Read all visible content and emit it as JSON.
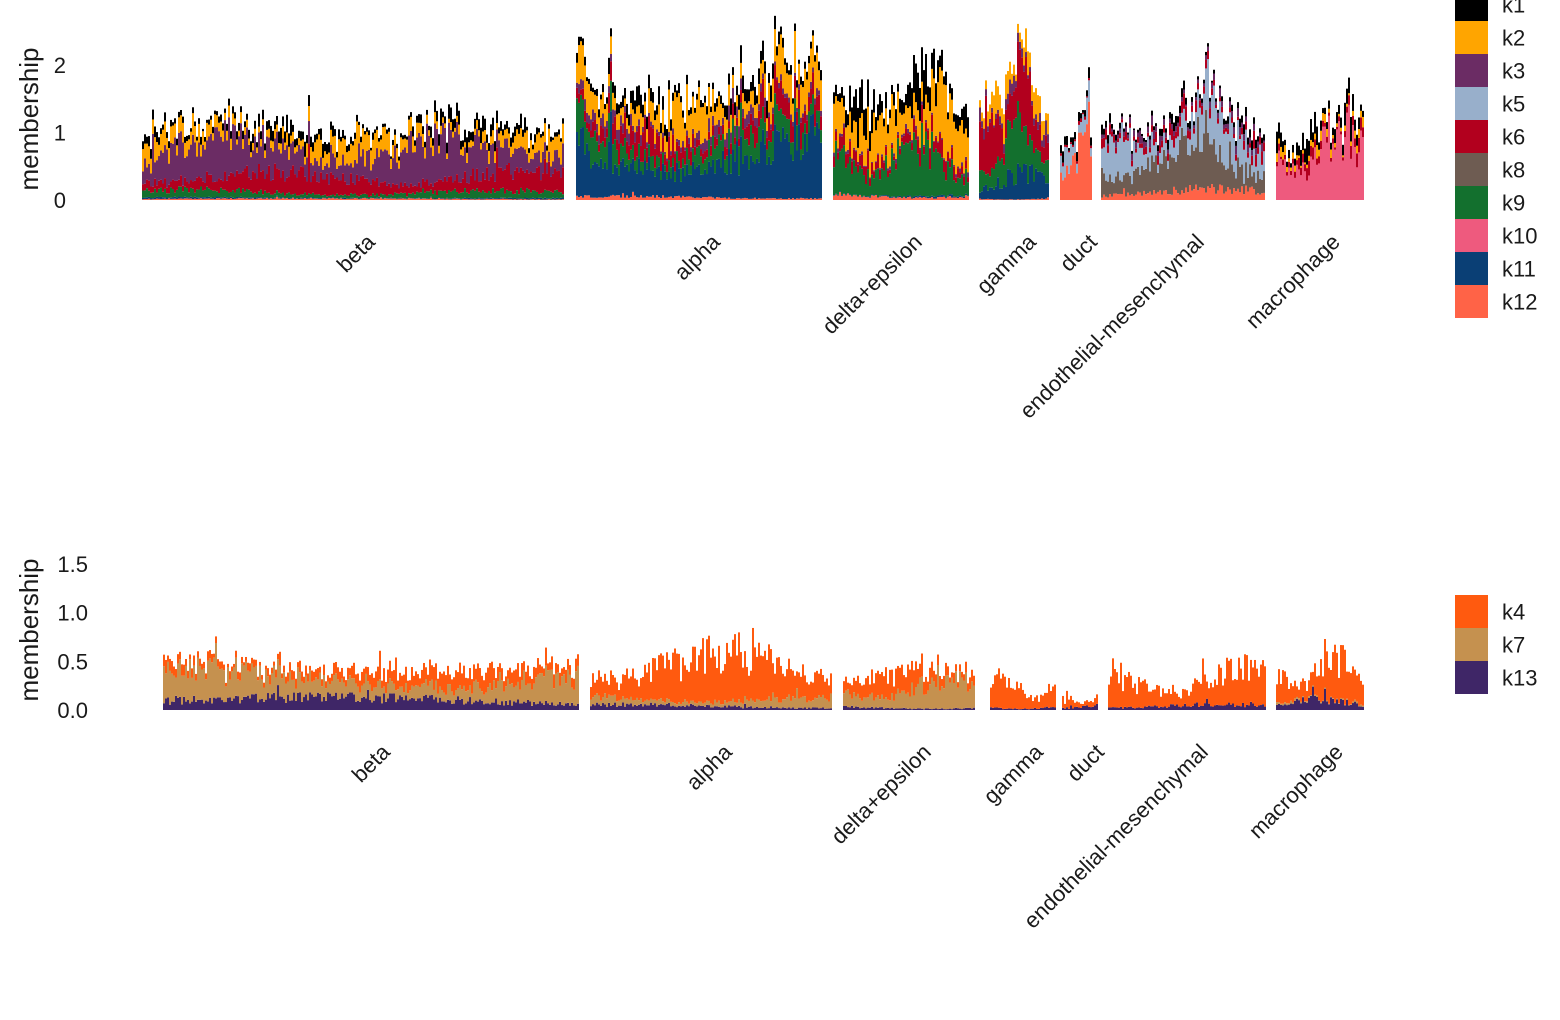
{
  "chart_data": [
    {
      "type": "bar",
      "stacked": true,
      "ylabel": "membership",
      "ylim": [
        0,
        2.7
      ],
      "yticks": [
        0,
        1,
        2
      ],
      "grid": false,
      "legend_position": "right",
      "categories": [
        "beta",
        "alpha",
        "delta+epsilon",
        "gamma",
        "duct",
        "endothelial-mesenchymal",
        "macrophage"
      ],
      "legend": [
        {
          "name": "k1",
          "color": "#000000"
        },
        {
          "name": "k2",
          "color": "#FFA500"
        },
        {
          "name": "k3",
          "color": "#6B2C64"
        },
        {
          "name": "k5",
          "color": "#98AFCB"
        },
        {
          "name": "k6",
          "color": "#B2001E"
        },
        {
          "name": "k8",
          "color": "#6E5C52"
        },
        {
          "name": "k9",
          "color": "#13702E"
        },
        {
          "name": "k10",
          "color": "#EE5A7E"
        },
        {
          "name": "k11",
          "color": "#0A3F75"
        },
        {
          "name": "k12",
          "color": "#FF6347"
        }
      ],
      "approx_group_means": {
        "beta": {
          "k12": 0.02,
          "k11": 0.02,
          "k9": 0.1,
          "k6": 0.3,
          "k3": 0.55,
          "k2": 0.25,
          "k1": 0.15
        },
        "alpha": {
          "k12": 0.05,
          "k11": 0.85,
          "k9": 0.35,
          "k6": 0.3,
          "k3": 0.15,
          "k2": 0.45,
          "k1": 0.2
        },
        "delta+epsilon": {
          "k12": 0.08,
          "k11": 0.02,
          "k9": 0.7,
          "k6": 0.2,
          "k3": 0.05,
          "k2": 0.75,
          "k1": 0.4
        },
        "gamma": {
          "k12": 0.02,
          "k11": 0.35,
          "k9": 0.65,
          "k6": 0.75,
          "k3": 0.15,
          "k2": 0.35,
          "k1": 0.0
        },
        "duct": {
          "k12": 0.95,
          "k5": 0.3,
          "k6": 0.05,
          "k1": 0.15
        },
        "endothelial-mesenchymal": {
          "k12": 0.15,
          "k8": 0.6,
          "k5": 0.5,
          "k6": 0.15,
          "k3": 0.1,
          "k1": 0.1
        },
        "macrophage": {
          "k10": 0.95,
          "k6": 0.15,
          "k2": 0.1,
          "k1": 0.25
        }
      }
    },
    {
      "type": "bar",
      "stacked": true,
      "ylabel": "membership",
      "ylim": [
        0,
        1.85
      ],
      "yticks": [
        "0.0",
        "0.5",
        "1.0",
        "1.5"
      ],
      "grid": false,
      "legend_position": "right",
      "categories": [
        "beta",
        "alpha",
        "delta+epsilon",
        "gamma",
        "duct",
        "endothelial-mesenchymal",
        "macrophage"
      ],
      "legend": [
        {
          "name": "k4",
          "color": "#FF5A0F"
        },
        {
          "name": "k7",
          "color": "#C5914F"
        },
        {
          "name": "k13",
          "color": "#3F2667"
        }
      ],
      "approx_group_means": {
        "beta": {
          "k13": 0.12,
          "k7": 0.3,
          "k4": 0.15
        },
        "alpha": {
          "k13": 0.05,
          "k7": 0.1,
          "k4": 0.45
        },
        "delta+epsilon": {
          "k13": 0.03,
          "k7": 0.25,
          "k4": 0.2
        },
        "gamma": {
          "k13": 0.03,
          "k7": 0.0,
          "k4": 0.3
        },
        "duct": {
          "k13": 0.05,
          "k7": 0.0,
          "k4": 0.08
        },
        "endothelial-mesenchymal": {
          "k13": 0.05,
          "k7": 0.0,
          "k4": 0.35
        },
        "macrophage": {
          "k13": 0.1,
          "k7": 0.02,
          "k4": 0.4
        }
      }
    }
  ]
}
